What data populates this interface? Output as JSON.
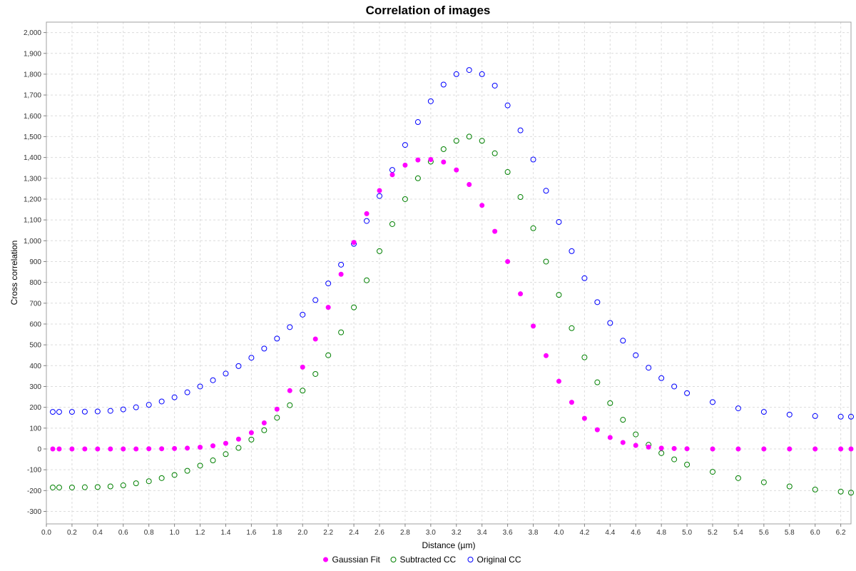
{
  "chart_data": {
    "type": "scatter",
    "title": "Correlation of images",
    "xlabel": "Distance (µm)",
    "ylabel": "Cross correlation",
    "xlim": [
      0,
      6.28
    ],
    "ylim": [
      -360,
      2050
    ],
    "grid": true,
    "legend_position": "bottom-center",
    "x_ticks": [
      0.0,
      0.2,
      0.4,
      0.6,
      0.8,
      1.0,
      1.2,
      1.4,
      1.6,
      1.8,
      2.0,
      2.2,
      2.4,
      2.6,
      2.8,
      3.0,
      3.2,
      3.4,
      3.6,
      3.8,
      4.0,
      4.2,
      4.4,
      4.6,
      4.8,
      5.0,
      5.2,
      5.4,
      5.6,
      5.8,
      6.0,
      6.2
    ],
    "x_tick_labels": [
      "0.0",
      "0.2",
      "0.4",
      "0.6",
      "0.8",
      "1.0",
      "1.2",
      "1.4",
      "1.6",
      "1.8",
      "2.0",
      "2.2",
      "2.4",
      "2.6",
      "2.8",
      "3.0",
      "3.2",
      "3.4",
      "3.6",
      "3.8",
      "4.0",
      "4.2",
      "4.4",
      "4.6",
      "4.8",
      "5.0",
      "5.2",
      "5.4",
      "5.6",
      "5.8",
      "6.0",
      "6.2"
    ],
    "y_ticks": [
      -300,
      -200,
      -100,
      0,
      100,
      200,
      300,
      400,
      500,
      600,
      700,
      800,
      900,
      1000,
      1100,
      1200,
      1300,
      1400,
      1500,
      1600,
      1700,
      1800,
      1900,
      2000
    ],
    "y_tick_labels": [
      "-300",
      "-200",
      "-100",
      "0",
      "100",
      "200",
      "300",
      "400",
      "500",
      "600",
      "700",
      "800",
      "900",
      "1,000",
      "1,100",
      "1,200",
      "1,300",
      "1,400",
      "1,500",
      "1,600",
      "1,700",
      "1,800",
      "1,900",
      "2,000"
    ],
    "series": [
      {
        "name": "Gaussian Fit",
        "color": "#ff00ff",
        "marker": "filled-circle",
        "x": [
          0.05,
          0.1,
          0.2,
          0.3,
          0.4,
          0.5,
          0.6,
          0.7,
          0.8,
          0.9,
          1.0,
          1.1,
          1.2,
          1.3,
          1.4,
          1.5,
          1.6,
          1.7,
          1.8,
          1.9,
          2.0,
          2.1,
          2.2,
          2.3,
          2.4,
          2.5,
          2.6,
          2.7,
          2.8,
          2.9,
          3.0,
          3.1,
          3.2,
          3.3,
          3.4,
          3.5,
          3.6,
          3.7,
          3.8,
          3.9,
          4.0,
          4.1,
          4.2,
          4.3,
          4.4,
          4.5,
          4.6,
          4.7,
          4.8,
          4.9,
          5.0,
          5.2,
          5.4,
          5.6,
          5.8,
          6.0,
          6.2,
          6.28
        ],
        "y": [
          0,
          0,
          0,
          0,
          0,
          0,
          0,
          0,
          1,
          1,
          2,
          4,
          8,
          15,
          27,
          47,
          78,
          125,
          191,
          280,
          393,
          528,
          680,
          839,
          992,
          1130,
          1241,
          1317,
          1363,
          1388,
          1390,
          1378,
          1340,
          1270,
          1170,
          1045,
          900,
          745,
          590,
          448,
          325,
          224,
          147,
          92,
          55,
          31,
          17,
          9,
          4,
          2,
          1,
          0,
          0,
          0,
          0,
          0,
          0,
          0
        ]
      },
      {
        "name": "Subtracted CC",
        "color": "#008000",
        "marker": "open-circle",
        "x": [
          0.05,
          0.1,
          0.2,
          0.3,
          0.4,
          0.5,
          0.6,
          0.7,
          0.8,
          0.9,
          1.0,
          1.1,
          1.2,
          1.3,
          1.4,
          1.5,
          1.6,
          1.7,
          1.8,
          1.9,
          2.0,
          2.1,
          2.2,
          2.3,
          2.4,
          2.5,
          2.6,
          2.7,
          2.8,
          2.9,
          3.0,
          3.1,
          3.2,
          3.3,
          3.4,
          3.5,
          3.6,
          3.7,
          3.8,
          3.9,
          4.0,
          4.1,
          4.2,
          4.3,
          4.4,
          4.5,
          4.6,
          4.7,
          4.8,
          4.9,
          5.0,
          5.2,
          5.4,
          5.6,
          5.8,
          6.0,
          6.2,
          6.28
        ],
        "y": [
          -185,
          -185,
          -185,
          -184,
          -183,
          -180,
          -175,
          -165,
          -155,
          -140,
          -125,
          -105,
          -80,
          -55,
          -25,
          5,
          45,
          90,
          150,
          210,
          280,
          360,
          450,
          560,
          680,
          810,
          950,
          1080,
          1200,
          1300,
          1380,
          1440,
          1480,
          1500,
          1480,
          1420,
          1330,
          1210,
          1060,
          900,
          740,
          580,
          440,
          320,
          220,
          140,
          70,
          20,
          -20,
          -50,
          -75,
          -110,
          -140,
          -160,
          -180,
          -195,
          -205,
          -210
        ]
      },
      {
        "name": "Original CC",
        "color": "#0000ff",
        "marker": "open-circle",
        "x": [
          0.05,
          0.1,
          0.2,
          0.3,
          0.4,
          0.5,
          0.6,
          0.7,
          0.8,
          0.9,
          1.0,
          1.1,
          1.2,
          1.3,
          1.4,
          1.5,
          1.6,
          1.7,
          1.8,
          1.9,
          2.0,
          2.1,
          2.2,
          2.3,
          2.4,
          2.5,
          2.6,
          2.7,
          2.8,
          2.9,
          3.0,
          3.1,
          3.2,
          3.3,
          3.4,
          3.5,
          3.6,
          3.7,
          3.8,
          3.9,
          4.0,
          4.1,
          4.2,
          4.3,
          4.4,
          4.5,
          4.6,
          4.7,
          4.8,
          4.9,
          5.0,
          5.2,
          5.4,
          5.6,
          5.8,
          6.0,
          6.2,
          6.28
        ],
        "y": [
          178,
          178,
          178,
          179,
          180,
          183,
          190,
          200,
          212,
          228,
          248,
          272,
          300,
          330,
          362,
          398,
          438,
          482,
          530,
          585,
          645,
          715,
          795,
          885,
          985,
          1095,
          1215,
          1340,
          1460,
          1570,
          1670,
          1750,
          1800,
          1820,
          1800,
          1745,
          1650,
          1530,
          1390,
          1240,
          1090,
          950,
          820,
          705,
          605,
          520,
          450,
          390,
          340,
          300,
          268,
          225,
          195,
          178,
          165,
          158,
          155,
          155
        ]
      }
    ]
  }
}
